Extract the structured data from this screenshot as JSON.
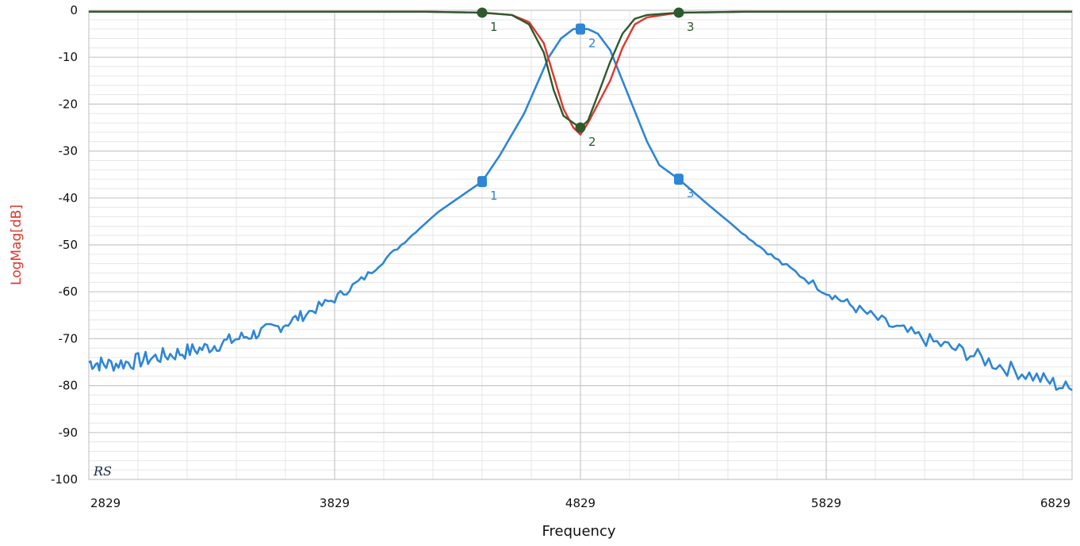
{
  "chart_data": {
    "type": "line",
    "xlabel": "Frequency",
    "ylabel": "LogMag[dB]",
    "watermark": "RS",
    "xlim": [
      2829,
      6829
    ],
    "ylim": [
      -100,
      0
    ],
    "x_ticks": [
      2829,
      3829,
      4829,
      5829,
      6829
    ],
    "y_ticks": [
      0,
      -10,
      -20,
      -30,
      -40,
      -50,
      -60,
      -70,
      -80,
      -90,
      -100
    ],
    "grid": true,
    "colors": {
      "blue": "#2e86d6",
      "red": "#e0362c",
      "green": "#2d5a2d"
    },
    "series": [
      {
        "color": "#2e86d6",
        "x": [
          2829,
          2900,
          3000,
          3100,
          3200,
          3300,
          3400,
          3500,
          3600,
          3700,
          3829,
          3950,
          4100,
          4250,
          4429,
          4500,
          4600,
          4650,
          4700,
          4750,
          4800,
          4829,
          4860,
          4900,
          4950,
          5000,
          5050,
          5100,
          5150,
          5229,
          5350,
          5500,
          5650,
          5829,
          5950,
          6100,
          6250,
          6400,
          6550,
          6700,
          6829
        ],
        "y": [
          -75,
          -75.5,
          -75,
          -74,
          -73,
          -72,
          -70.5,
          -69,
          -67.5,
          -65,
          -61.5,
          -57,
          -50,
          -43,
          -36.5,
          -31,
          -22,
          -16,
          -10,
          -6,
          -4,
          -4,
          -4,
          -5,
          -8.5,
          -15,
          -21.5,
          -28,
          -33,
          -36,
          -41.5,
          -48,
          -54,
          -60,
          -63.5,
          -67.5,
          -70.5,
          -73,
          -76,
          -78.5,
          -81
        ]
      },
      {
        "color": "#e0362c",
        "x": [
          2829,
          3829,
          4200,
          4429,
          4550,
          4620,
          4680,
          4720,
          4760,
          4800,
          4829,
          4860,
          4900,
          4950,
          5000,
          5050,
          5100,
          5229,
          5500,
          6829
        ],
        "y": [
          -0.3,
          -0.3,
          -0.3,
          -0.5,
          -1,
          -2.5,
          -7,
          -14,
          -21,
          -25,
          -26.5,
          -24,
          -20,
          -15,
          -8,
          -3,
          -1.5,
          -0.5,
          -0.3,
          -0.3
        ]
      },
      {
        "color": "#2d5a2d",
        "x": [
          2829,
          3829,
          4200,
          4429,
          4550,
          4620,
          4680,
          4720,
          4760,
          4800,
          4829,
          4860,
          4900,
          4950,
          5000,
          5050,
          5100,
          5229,
          5500,
          6829
        ],
        "y": [
          -0.3,
          -0.3,
          -0.3,
          -0.5,
          -1,
          -3,
          -9,
          -17,
          -22.5,
          -24,
          -25,
          -23.5,
          -18,
          -11,
          -5,
          -1.8,
          -1,
          -0.5,
          -0.3,
          -0.3
        ]
      }
    ],
    "markers": [
      {
        "label": "1",
        "x": 4429,
        "y": -36.5,
        "color": "#2e86d6"
      },
      {
        "label": "2",
        "x": 4829,
        "y": -4,
        "color": "#2e86d6"
      },
      {
        "label": "3",
        "x": 5229,
        "y": -36,
        "color": "#2e86d6"
      },
      {
        "label": "1",
        "x": 4429,
        "y": -0.5,
        "color": "#2d5a2d"
      },
      {
        "label": "2",
        "x": 4829,
        "y": -25,
        "color": "#2d5a2d"
      },
      {
        "label": "3",
        "x": 5229,
        "y": -0.5,
        "color": "#2d5a2d"
      }
    ]
  }
}
